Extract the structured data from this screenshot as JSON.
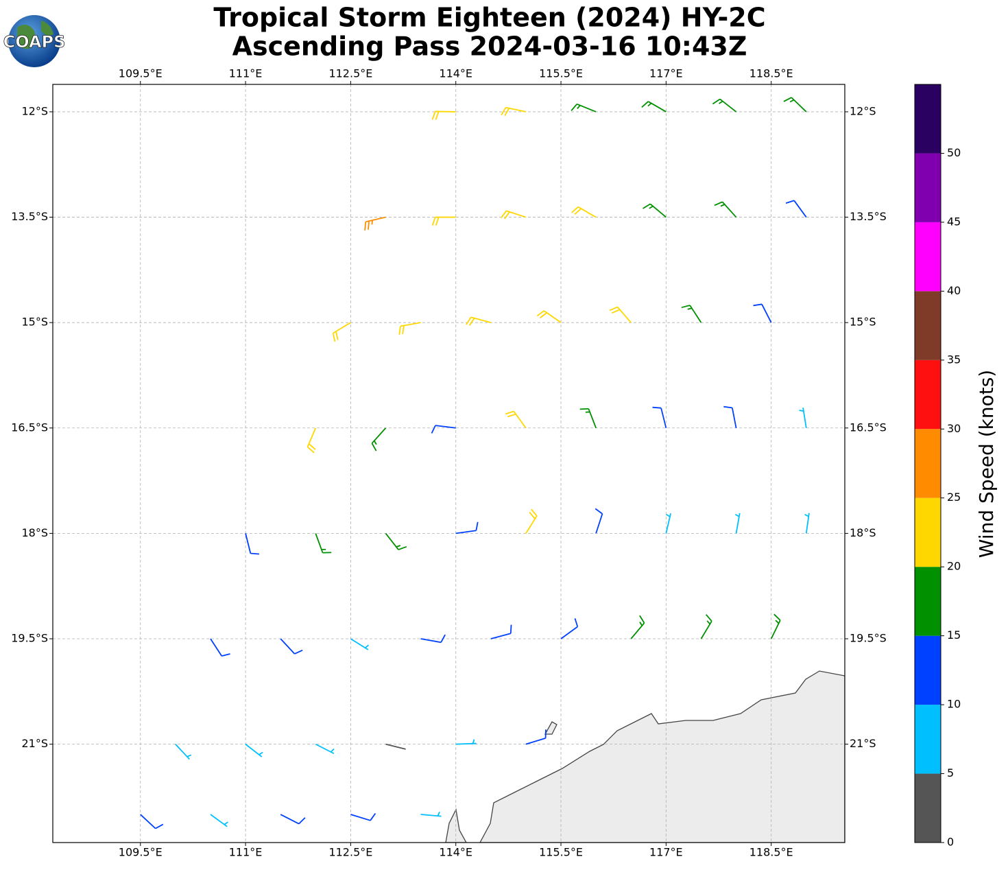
{
  "header": {
    "logo": "COAPS",
    "title": [
      "Tropical Storm Eighteen (2024) HY-2C",
      "Ascending Pass 2024-03-16 10:43Z"
    ]
  },
  "map": {
    "type": "barbs",
    "xlim": [
      108.25,
      119.55
    ],
    "ylim": [
      -22.4,
      -11.61
    ],
    "xticks": [
      {
        "value": 109.5,
        "label": "109.5°E"
      },
      {
        "value": 111,
        "label": "111°E"
      },
      {
        "value": 112.5,
        "label": "112.5°E"
      },
      {
        "value": 114,
        "label": "114°E"
      },
      {
        "value": 115.5,
        "label": "115.5°E"
      },
      {
        "value": 117,
        "label": "117°E"
      },
      {
        "value": 118.5,
        "label": "118.5°E"
      }
    ],
    "yticks": [
      {
        "value": -12,
        "label": "12°S"
      },
      {
        "value": -13.5,
        "label": "13.5°S"
      },
      {
        "value": -15,
        "label": "15°S"
      },
      {
        "value": -16.5,
        "label": "16.5°S"
      },
      {
        "value": -18,
        "label": "18°S"
      },
      {
        "value": -19.5,
        "label": "19.5°S"
      },
      {
        "value": -21,
        "label": "21°S"
      }
    ],
    "grid": true,
    "barbs": {
      "lon": [
        114,
        115,
        116,
        117,
        118,
        119,
        113,
        114,
        115,
        116,
        117,
        118,
        119,
        112.5,
        113.5,
        114.5,
        115.5,
        116.5,
        117.5,
        118.5,
        112,
        113,
        114,
        115,
        116,
        117,
        118,
        119,
        111,
        112,
        113,
        114,
        115,
        116,
        117,
        118,
        119,
        110.5,
        111.5,
        112.5,
        113.5,
        114.5,
        115.5,
        116.5,
        117.5,
        118.5,
        110,
        111,
        112,
        113,
        114,
        115,
        109.5,
        110.5,
        111.5,
        112.5,
        113.5
      ],
      "lat": [
        -12,
        -12,
        -12,
        -12,
        -12,
        -12,
        -13.5,
        -13.5,
        -13.5,
        -13.5,
        -13.5,
        -13.5,
        -13.5,
        -15,
        -15,
        -15,
        -15,
        -15,
        -15,
        -15,
        -16.5,
        -16.5,
        -16.5,
        -16.5,
        -16.5,
        -16.5,
        -16.5,
        -16.5,
        -18,
        -18,
        -18,
        -18,
        -18,
        -18,
        -18,
        -18,
        -18,
        -19.5,
        -19.5,
        -19.5,
        -19.5,
        -19.5,
        -19.5,
        -19.5,
        -19.5,
        -19.5,
        -21,
        -21,
        -21,
        -21,
        -21,
        -21,
        -22,
        -22,
        -22,
        -22,
        -22
      ],
      "speed": [
        22,
        22,
        18,
        18,
        17,
        17,
        27,
        24,
        22,
        21,
        19,
        17,
        14,
        24,
        23,
        23,
        22,
        21,
        17,
        13,
        22,
        18,
        14,
        20,
        17,
        13,
        11,
        9,
        13,
        17,
        17,
        12,
        20,
        14,
        9,
        8,
        8,
        12,
        13,
        9,
        12,
        13,
        14,
        16,
        17,
        16,
        8,
        9,
        8,
        4,
        8,
        12,
        12,
        8,
        12,
        10,
        7
      ],
      "direction": [
        271,
        282,
        292,
        300,
        308,
        314,
        257,
        270,
        288,
        300,
        310,
        318,
        324,
        239,
        260,
        285,
        305,
        319,
        327,
        333,
        203,
        222,
        277,
        324,
        339,
        346,
        349,
        351,
        166,
        160,
        142,
        82,
        32,
        18,
        13,
        10,
        8,
        147,
        137,
        122,
        100,
        75,
        54,
        40,
        31,
        26,
        137,
        128,
        117,
        104,
        88,
        73,
        133,
        126,
        117,
        107,
        95
      ]
    }
  },
  "colorbar": {
    "label": "Wind Speed (knots)",
    "lim": [
      0,
      55
    ],
    "ticks": [
      0,
      5,
      10,
      15,
      20,
      25,
      30,
      35,
      40,
      45,
      50
    ],
    "bounds": [
      0,
      5,
      10,
      15,
      20,
      25,
      30,
      35,
      40,
      45,
      50,
      55
    ],
    "colors": [
      "#555555",
      "#00bfff",
      "#0040ff",
      "#009000",
      "#ffd700",
      "#ff8c00",
      "#ff1010",
      "#803a28",
      "#ff00ff",
      "#8000b0",
      "#2a0060"
    ]
  }
}
